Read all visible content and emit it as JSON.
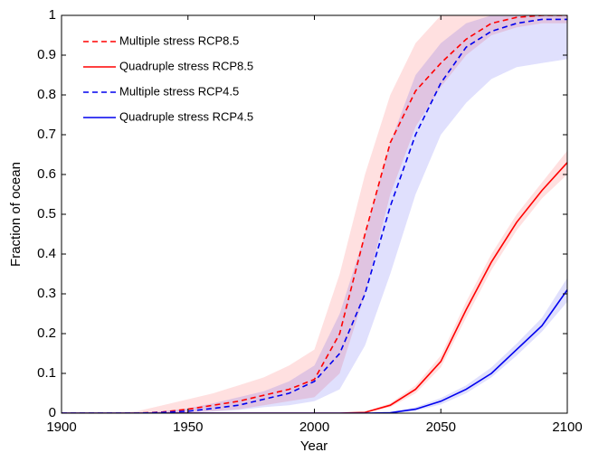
{
  "chart_data": {
    "type": "line",
    "xlabel": "Year",
    "ylabel": "Fraction of ocean",
    "x": [
      1900,
      1910,
      1920,
      1930,
      1940,
      1950,
      1960,
      1970,
      1980,
      1990,
      2000,
      2010,
      2020,
      2030,
      2040,
      2050,
      2060,
      2070,
      2080,
      2090,
      2100
    ],
    "xlim": [
      1900,
      2100
    ],
    "xticks": [
      1900,
      1950,
      2000,
      2050,
      2100
    ],
    "ylim": [
      0,
      1
    ],
    "yticks": [
      0,
      0.1,
      0.2,
      0.3,
      0.4,
      0.5,
      0.6,
      0.7,
      0.8,
      0.9,
      1
    ],
    "legend": "upper left",
    "series": [
      {
        "name": "Multiple stress RCP8.5",
        "color": "#ff0000",
        "style": "dashed",
        "values": [
          0,
          0,
          0,
          0,
          0.003,
          0.01,
          0.02,
          0.03,
          0.045,
          0.06,
          0.085,
          0.2,
          0.45,
          0.68,
          0.81,
          0.88,
          0.94,
          0.98,
          0.995,
          1,
          1
        ],
        "lower": [
          0,
          0,
          0,
          0,
          0,
          0.002,
          0.005,
          0.01,
          0.02,
          0.03,
          0.04,
          0.1,
          0.3,
          0.55,
          0.72,
          0.82,
          0.9,
          0.95,
          0.97,
          0.98,
          0.98
        ],
        "upper": [
          0,
          0,
          0,
          0.005,
          0.02,
          0.035,
          0.05,
          0.07,
          0.09,
          0.12,
          0.16,
          0.35,
          0.6,
          0.8,
          0.93,
          1,
          1,
          1,
          1,
          1,
          1
        ]
      },
      {
        "name": "Quadruple stress RCP8.5",
        "color": "#ff0000",
        "style": "solid",
        "values": [
          0,
          0,
          0,
          0,
          0,
          0,
          0,
          0,
          0,
          0,
          0,
          0,
          0.002,
          0.02,
          0.06,
          0.13,
          0.26,
          0.38,
          0.48,
          0.56,
          0.63
        ],
        "lower": [
          0,
          0,
          0,
          0,
          0,
          0,
          0,
          0,
          0,
          0,
          0,
          0,
          0.001,
          0.015,
          0.05,
          0.115,
          0.24,
          0.36,
          0.46,
          0.54,
          0.6
        ],
        "upper": [
          0,
          0,
          0,
          0,
          0,
          0,
          0,
          0,
          0,
          0,
          0,
          0,
          0.004,
          0.025,
          0.07,
          0.145,
          0.28,
          0.4,
          0.5,
          0.58,
          0.66
        ]
      },
      {
        "name": "Multiple stress RCP4.5",
        "color": "#0000ee",
        "style": "dashed",
        "values": [
          0,
          0,
          0,
          0,
          0.002,
          0.005,
          0.012,
          0.02,
          0.035,
          0.05,
          0.08,
          0.15,
          0.3,
          0.52,
          0.7,
          0.83,
          0.92,
          0.96,
          0.98,
          0.99,
          0.99
        ],
        "lower": [
          0,
          0,
          0,
          0,
          0,
          0.001,
          0.004,
          0.008,
          0.015,
          0.02,
          0.03,
          0.06,
          0.17,
          0.35,
          0.55,
          0.7,
          0.78,
          0.84,
          0.87,
          0.88,
          0.89
        ],
        "upper": [
          0,
          0,
          0,
          0,
          0.005,
          0.012,
          0.025,
          0.04,
          0.055,
          0.08,
          0.12,
          0.25,
          0.45,
          0.68,
          0.85,
          0.93,
          0.98,
          1,
          1,
          1,
          1
        ]
      },
      {
        "name": "Quadruple stress RCP4.5",
        "color": "#0000ee",
        "style": "solid",
        "values": [
          0,
          0,
          0,
          0,
          0,
          0,
          0,
          0,
          0,
          0,
          0,
          0,
          0,
          0.001,
          0.01,
          0.03,
          0.06,
          0.1,
          0.16,
          0.22,
          0.31
        ],
        "lower": [
          0,
          0,
          0,
          0,
          0,
          0,
          0,
          0,
          0,
          0,
          0,
          0,
          0,
          0,
          0.006,
          0.022,
          0.05,
          0.09,
          0.145,
          0.205,
          0.28
        ],
        "upper": [
          0,
          0,
          0,
          0,
          0,
          0,
          0,
          0,
          0,
          0,
          0,
          0,
          0,
          0.003,
          0.015,
          0.038,
          0.07,
          0.115,
          0.175,
          0.24,
          0.34
        ]
      }
    ]
  }
}
